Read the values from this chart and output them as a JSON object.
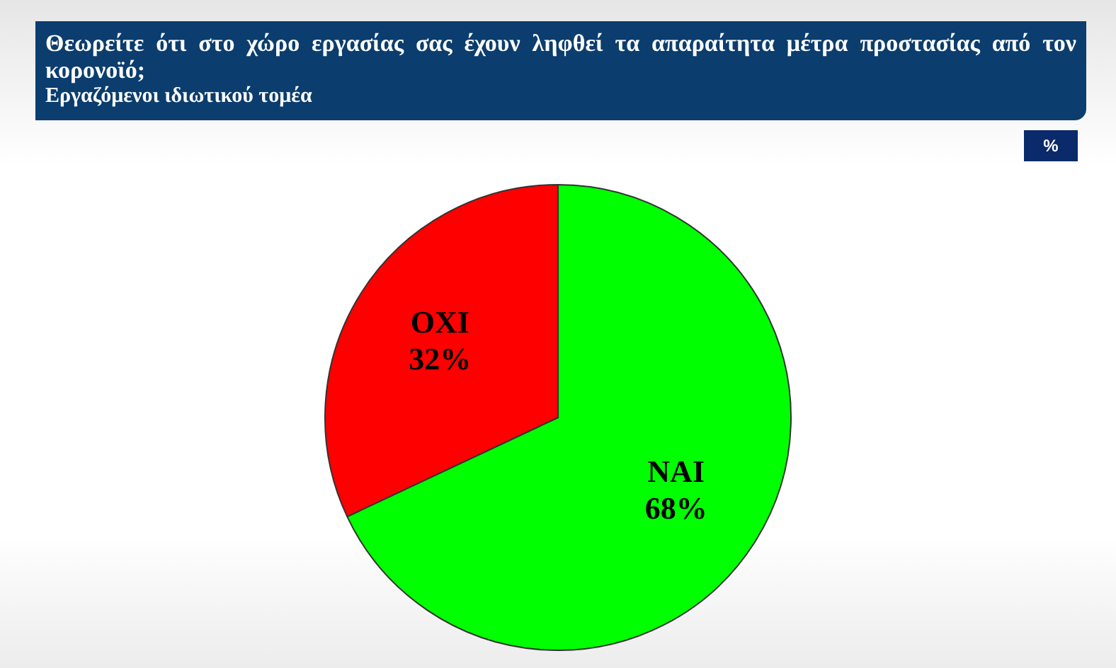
{
  "chart_data": {
    "type": "pie",
    "title": "Θεωρείτε ότι στο χώρο εργασίας σας  έχουν ληφθεί τα απαραίτητα μέτρα προστασίας από τον κορονοϊό;",
    "subtitle": "Εργαζόμενοι ιδιωτικού τομέα",
    "annotations": [
      "%"
    ],
    "categories": [
      "ΝΑΙ",
      "ΟΧΙ"
    ],
    "values": [
      68,
      32
    ],
    "value_labels": [
      "68%",
      "32%"
    ],
    "colors": [
      "#00ff00",
      "#ff0000"
    ]
  }
}
